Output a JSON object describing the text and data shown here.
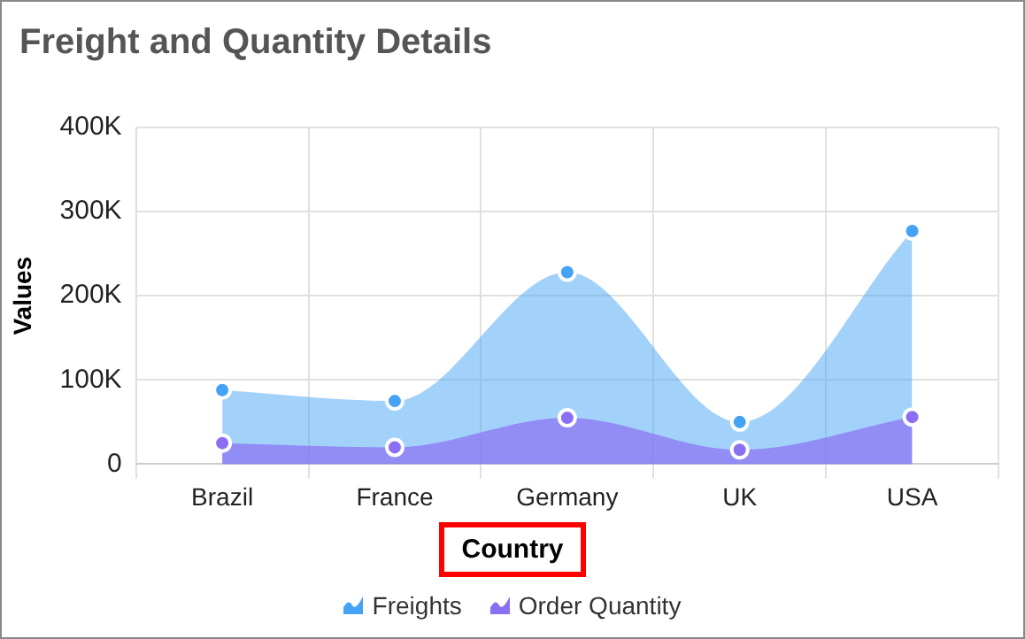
{
  "chart_data": {
    "type": "area",
    "title": "Freight and Quantity Details",
    "xlabel": "Country",
    "ylabel": "Values",
    "categories": [
      "Brazil",
      "France",
      "Germany",
      "UK",
      "USA"
    ],
    "series": [
      {
        "name": "Freights",
        "color": "#45a3f6",
        "values": [
          88000,
          75000,
          228000,
          50000,
          277000
        ]
      },
      {
        "name": "Order Quantity",
        "color": "#8b6ff2",
        "values": [
          25000,
          20000,
          55000,
          17000,
          56000
        ]
      }
    ],
    "ylim": [
      0,
      400000
    ],
    "yticks": [
      {
        "value": 0,
        "label": "0"
      },
      {
        "value": 100000,
        "label": "100K"
      },
      {
        "value": 200000,
        "label": "200K"
      },
      {
        "value": 300000,
        "label": "300K"
      },
      {
        "value": 400000,
        "label": "400K"
      }
    ],
    "grid": true,
    "legend": "bottom",
    "marker": "circle"
  }
}
